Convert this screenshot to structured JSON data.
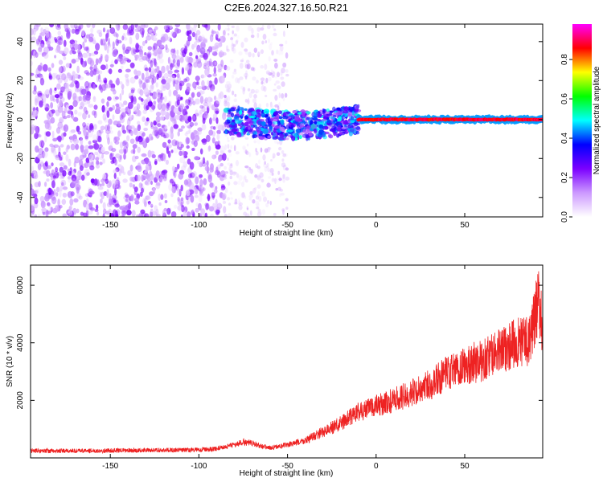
{
  "chart_data": [
    {
      "type": "heatmap",
      "title": "C2E6.2024.327.16.50.R21",
      "xlabel": "Height of straight line (km)",
      "ylabel": "Frequency (Hz)",
      "xlim": [
        -195,
        94
      ],
      "ylim": [
        -50,
        49
      ],
      "xticks": [
        -150,
        -100,
        -50,
        0,
        50
      ],
      "yticks": [
        -40,
        -20,
        0,
        20,
        40
      ],
      "colorbar": {
        "label": "Normalized spectral amplitude",
        "range": [
          0,
          0.98
        ],
        "ticks": [
          "0.0",
          "0.2",
          "0.4",
          "0.6",
          "0.8"
        ],
        "colormap": [
          "#ffffff",
          "#cc99ff",
          "#7b00ff",
          "#0000ff",
          "#00ffff",
          "#00ff00",
          "#ffff00",
          "#ff0000",
          "#ff00ff"
        ]
      },
      "regions": [
        {
          "x_range": [
            -195,
            -85
          ],
          "freq_range": [
            -50,
            49
          ],
          "amplitude": 0.1,
          "pattern": "scattered noise"
        },
        {
          "x_range": [
            -85,
            -50
          ],
          "freq_range": [
            -50,
            49
          ],
          "amplitude": 0.05,
          "pattern": "sparse noise"
        },
        {
          "x_range": [
            -85,
            -10
          ],
          "freq_range": [
            -12,
            8
          ],
          "amplitude": 0.35,
          "pattern": "signal onset"
        },
        {
          "x_range": [
            -10,
            94
          ],
          "freq_range": [
            -2,
            2
          ],
          "amplitude": 0.9,
          "pattern": "narrow band at 0 Hz"
        }
      ]
    },
    {
      "type": "line",
      "xlabel": "Height of straight line (km)",
      "ylabel": "SNR (10 * v/v)",
      "xlim": [
        -195,
        94
      ],
      "ylim": [
        0,
        6700
      ],
      "xticks": [
        -150,
        -100,
        -50,
        0,
        50
      ],
      "yticks": [
        2000,
        4000,
        6000
      ],
      "color": "#ee2222",
      "series": [
        {
          "x": [
            -195,
            -180,
            -160,
            -140,
            -120,
            -100,
            -90,
            -80,
            -75,
            -70,
            -60,
            -50,
            -40,
            -30,
            -20,
            -10,
            0,
            10,
            20,
            30,
            40,
            50,
            60,
            70,
            75,
            80,
            85,
            88,
            90,
            92,
            94
          ],
          "values": [
            250,
            240,
            250,
            260,
            270,
            280,
            320,
            450,
            550,
            500,
            350,
            450,
            600,
            900,
            1200,
            1600,
            1800,
            2000,
            2250,
            2550,
            2900,
            3200,
            3400,
            3700,
            3900,
            4000,
            4050,
            4400,
            5000,
            5500,
            4500
          ]
        }
      ]
    }
  ]
}
